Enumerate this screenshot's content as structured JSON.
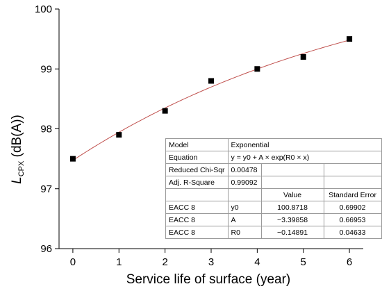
{
  "chart_data": {
    "type": "scatter",
    "xlabel": "Service life of surface (year)",
    "ylabel": "L",
    "ylabel_subscript": "CPX",
    "ylabel_suffix": " (dB(A))",
    "xlim": [
      -0.3,
      6.3
    ],
    "ylim": [
      96,
      100
    ],
    "xticks": [
      "0",
      "1",
      "2",
      "3",
      "4",
      "5",
      "6"
    ],
    "yticks": [
      "96",
      "97",
      "98",
      "99",
      "100"
    ],
    "grid": false,
    "points": [
      {
        "x": 0,
        "y": 97.5
      },
      {
        "x": 1,
        "y": 97.9
      },
      {
        "x": 2,
        "y": 98.3
      },
      {
        "x": 3,
        "y": 98.8
      },
      {
        "x": 4,
        "y": 99.0
      },
      {
        "x": 5,
        "y": 99.2
      },
      {
        "x": 6,
        "y": 99.5
      }
    ],
    "fit": {
      "model": "Exponential",
      "y0": 100.8718,
      "A": -3.39858,
      "R0": -0.14891,
      "color": "#c0504d"
    },
    "marker_color": "#000000",
    "table": {
      "rows": [
        [
          "Model",
          "Exponential",
          "",
          ""
        ],
        [
          "Equation",
          "y = y0 + A × exp(R0 × x)",
          "",
          ""
        ],
        [
          "Reduced Chi-Sqr",
          "0.00478",
          "",
          ""
        ],
        [
          "Adj. R-Square",
          "0.99092",
          "",
          ""
        ],
        [
          "",
          "",
          "Value",
          "Standard Error"
        ],
        [
          "EACC 8",
          "y0",
          "100.8718",
          "0.69902"
        ],
        [
          "EACC 8",
          "A",
          "−3.39858",
          "0.66953"
        ],
        [
          "EACC 8",
          "R0",
          "−0.14891",
          "0.04633"
        ]
      ]
    }
  }
}
